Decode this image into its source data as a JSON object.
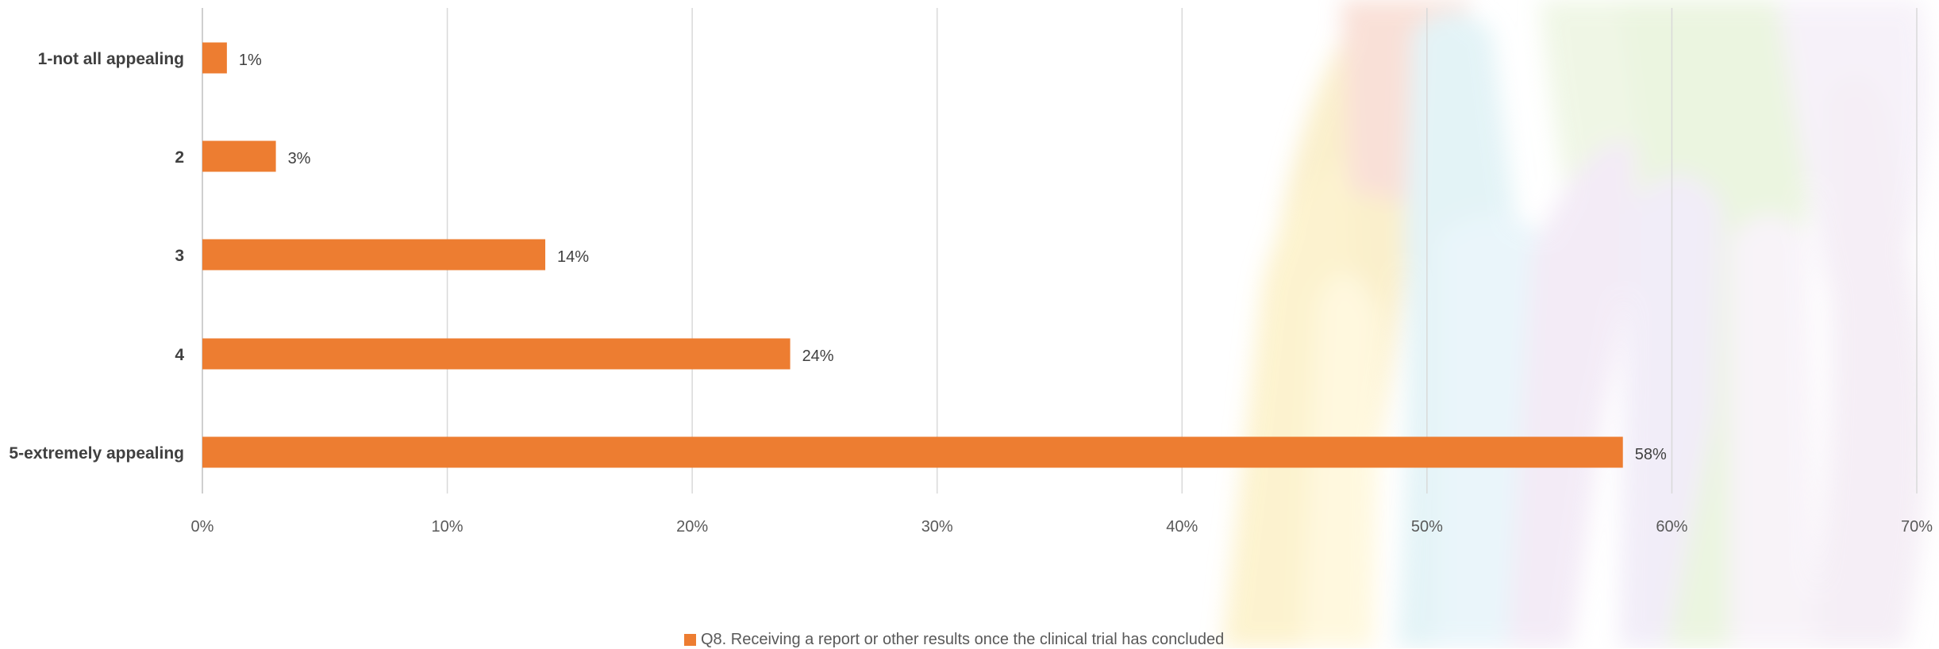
{
  "chart_data": {
    "type": "bar",
    "orientation": "horizontal",
    "categories": [
      "1-not all appealing",
      "2",
      "3",
      "4",
      "5-extremely appealing"
    ],
    "series": [
      {
        "name": "Q8. Receiving a report or other results once the clinical trial has concluded",
        "values": [
          1,
          3,
          14,
          24,
          58
        ],
        "data_labels": [
          "1%",
          "3%",
          "14%",
          "24%",
          "58%"
        ],
        "color": "#ED7D31"
      }
    ],
    "x_ticks": [
      "0%",
      "10%",
      "20%",
      "30%",
      "40%",
      "50%",
      "60%",
      "70%"
    ],
    "xlim": [
      0,
      70
    ],
    "grid": "vertical",
    "legend_position": "bottom"
  },
  "colors": {
    "bar": "#ED7D31",
    "gridline": "#D9D9D9",
    "axis": "#BFBFBF"
  }
}
